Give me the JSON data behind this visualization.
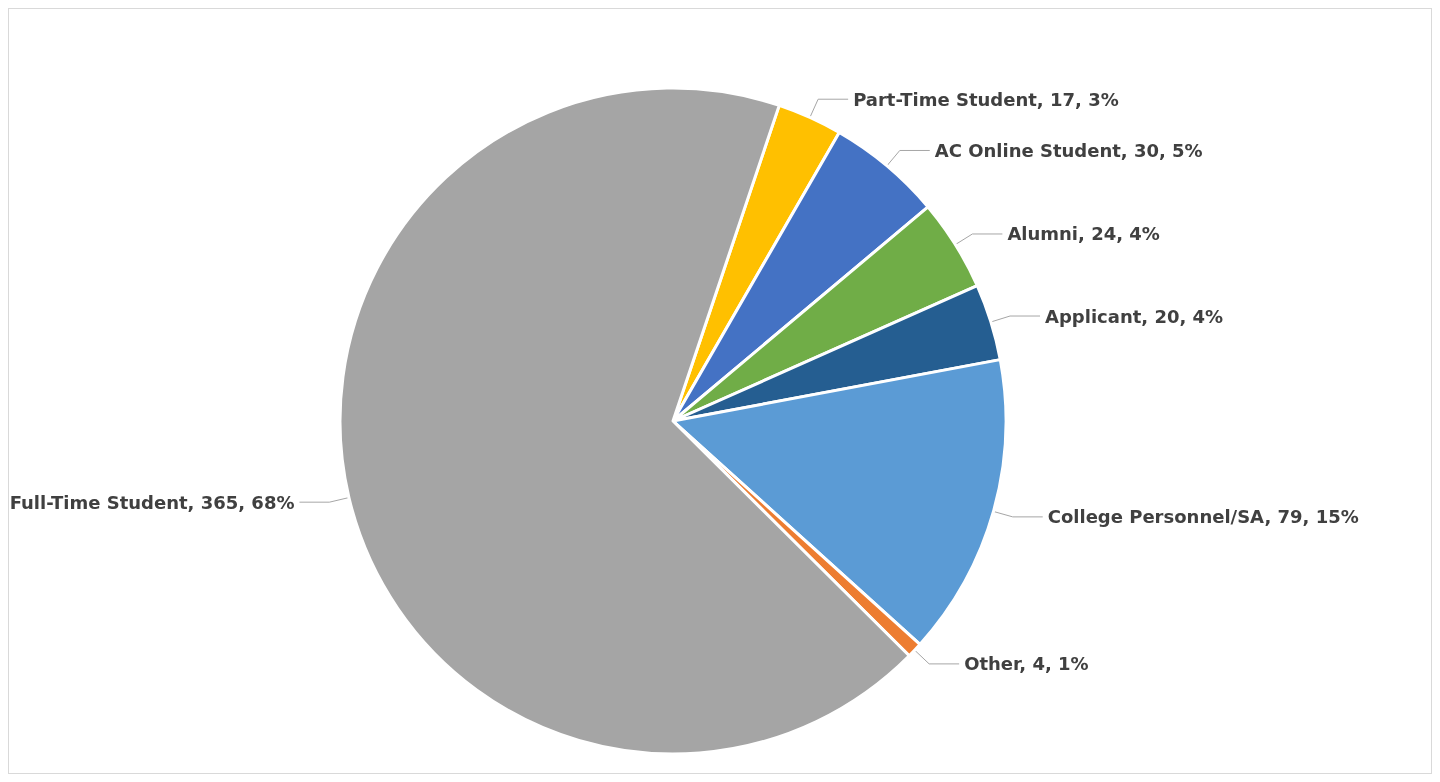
{
  "chart_data": {
    "type": "pie",
    "categories": [
      "Part-Time Student",
      "AC Online Student",
      "Alumni",
      "Applicant",
      "College Personnel/SA",
      "Other",
      "Full-Time Student"
    ],
    "values": [
      17,
      30,
      24,
      20,
      79,
      4,
      365
    ],
    "colors": [
      "#ffc000",
      "#4472c4",
      "#70ad47",
      "#255e91",
      "#5b9bd5",
      "#ed7d31",
      "#a5a5a5"
    ],
    "value_labels": [
      "17, 3%",
      "30, 5%",
      "24, 4%",
      "20, 4%",
      "79, 15%",
      "4, 1%",
      "365, 68%"
    ],
    "legend": false
  }
}
